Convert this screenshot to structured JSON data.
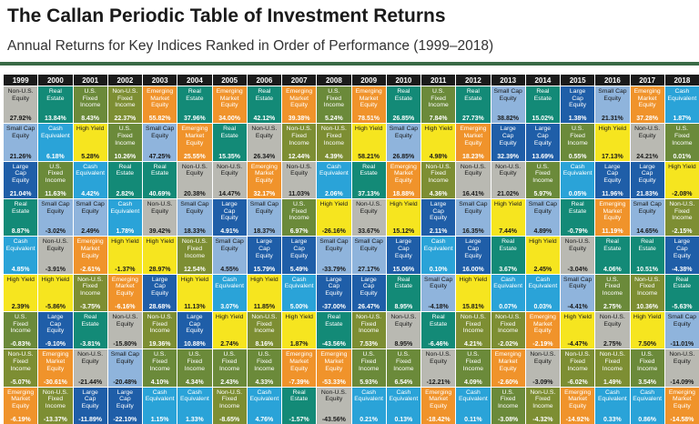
{
  "title": "The Callan Periodic Table of Investment Returns",
  "subtitle": "Annual Returns for Key Indices Ranked in Order of Performance (1999–2018)",
  "classes": {
    "lc": {
      "label": "Large\nCap\nEquity",
      "color": "#1f5ea8",
      "text": "#ffffff"
    },
    "sc": {
      "label": "Small Cap\nEquity",
      "color": "#8fb4dc",
      "text": "#1a1a1a"
    },
    "em": {
      "label": "Emerging\nMarket\nEquity",
      "color": "#f0932b",
      "text": "#ffffff"
    },
    "nus": {
      "label": "Non-U.S.\nEquity",
      "color": "#b9b9b2",
      "text": "#1a1a1a"
    },
    "hy": {
      "label": "High Yield",
      "color": "#f6e51f",
      "text": "#1a1a1a"
    },
    "re": {
      "label": "Real\nEstate",
      "color": "#138a77",
      "text": "#ffffff"
    },
    "usf": {
      "label": "U.S.\nFixed\nIncome",
      "color": "#6b8a3a",
      "text": "#ffffff"
    },
    "nuf": {
      "label": "Non-U.S.\nFixed\nIncome",
      "color": "#7d8e33",
      "text": "#ffffff"
    },
    "ce": {
      "label": "Cash\nEquivalent",
      "color": "#2aa3d8",
      "text": "#ffffff"
    }
  },
  "chart_data": {
    "type": "table",
    "title": "The Callan Periodic Table of Investment Returns",
    "subtitle": "Annual Returns for Key Indices Ranked in Order of Performance (1999–2018)",
    "years": [
      "1999",
      "2000",
      "2001",
      "2002",
      "2003",
      "2004",
      "2005",
      "2006",
      "2007",
      "2008",
      "2009",
      "2010",
      "2011",
      "2012",
      "2013",
      "2014",
      "2015",
      "2016",
      "2017",
      "2018"
    ],
    "columns": [
      [
        [
          "nus",
          "27.92%"
        ],
        [
          "re",
          "13.84%"
        ],
        [
          "usf",
          "8.43%"
        ],
        [
          "nuf",
          "22.37%"
        ],
        [
          "em",
          "55.82%"
        ],
        [
          "re",
          "37.96%"
        ],
        [
          "em",
          "34.00%"
        ],
        [
          "re",
          "42.12%"
        ],
        [
          "em",
          "39.38%"
        ],
        [
          "usf",
          "5.24%"
        ],
        [
          "em",
          "78.51%"
        ],
        [
          "re",
          "26.85%"
        ],
        [
          "usf",
          "7.84%"
        ],
        [
          "re",
          "27.73%"
        ],
        [
          "sc",
          "38.82%"
        ],
        [
          "re",
          "15.02%"
        ],
        [
          "lc",
          "1.38%"
        ],
        [
          "sc",
          "21.31%"
        ],
        [
          "em",
          "37.28%"
        ],
        [
          "ce",
          "1.87%"
        ]
      ],
      [
        [
          "sc",
          "21.26%"
        ],
        [
          "ce",
          "6.18%"
        ],
        [
          "hy",
          "5.28%"
        ],
        [
          "usf",
          "10.26%"
        ],
        [
          "sc",
          "47.25%"
        ],
        [
          "em",
          "25.55%"
        ],
        [
          "re",
          "15.35%"
        ],
        [
          "nus",
          "26.34%"
        ],
        [
          "nuf",
          "12.44%"
        ],
        [
          "nuf",
          "4.39%"
        ],
        [
          "hy",
          "58.21%"
        ],
        [
          "sc",
          "26.85%"
        ],
        [
          "hy",
          "4.98%"
        ],
        [
          "em",
          "18.23%"
        ],
        [
          "lc",
          "32.39%"
        ],
        [
          "lc",
          "13.69%"
        ],
        [
          "usf",
          "0.55%"
        ],
        [
          "hy",
          "17.13%"
        ],
        [
          "nus",
          "24.21%"
        ],
        [
          "usf",
          "0.01%"
        ]
      ],
      [
        [
          "lc",
          "21.04%"
        ],
        [
          "usf",
          "11.63%"
        ],
        [
          "ce",
          "4.42%"
        ],
        [
          "re",
          "2.82%"
        ],
        [
          "re",
          "40.69%"
        ],
        [
          "nus",
          "20.38%"
        ],
        [
          "nus",
          "14.47%"
        ],
        [
          "em",
          "32.17%"
        ],
        [
          "nus",
          "11.03%"
        ],
        [
          "ce",
          "2.06%"
        ],
        [
          "re",
          "37.13%"
        ],
        [
          "em",
          "18.88%"
        ],
        [
          "nuf",
          "4.36%"
        ],
        [
          "nus",
          "16.41%"
        ],
        [
          "nus",
          "21.02%"
        ],
        [
          "usf",
          "5.97%"
        ],
        [
          "ce",
          "0.05%"
        ],
        [
          "lc",
          "11.96%"
        ],
        [
          "lc",
          "21.83%"
        ],
        [
          "hy",
          "-2.08%"
        ]
      ],
      [
        [
          "re",
          "8.87%"
        ],
        [
          "sc",
          "-3.02%"
        ],
        [
          "sc",
          "2.49%"
        ],
        [
          "ce",
          "1.78%"
        ],
        [
          "nus",
          "39.42%"
        ],
        [
          "sc",
          "18.33%"
        ],
        [
          "lc",
          "4.91%"
        ],
        [
          "sc",
          "18.37%"
        ],
        [
          "usf",
          "6.97%"
        ],
        [
          "hy",
          "-26.16%"
        ],
        [
          "nus",
          "33.67%"
        ],
        [
          "hy",
          "15.12%"
        ],
        [
          "lc",
          "2.11%"
        ],
        [
          "sc",
          "16.35%"
        ],
        [
          "hy",
          "7.44%"
        ],
        [
          "sc",
          "4.89%"
        ],
        [
          "re",
          "-0.79%"
        ],
        [
          "em",
          "11.19%"
        ],
        [
          "sc",
          "14.65%"
        ],
        [
          "nuf",
          "-2.15%"
        ]
      ],
      [
        [
          "ce",
          "4.85%"
        ],
        [
          "nus",
          "-3.91%"
        ],
        [
          "em",
          "-2.61%"
        ],
        [
          "hy",
          "-1.37%"
        ],
        [
          "hy",
          "28.97%"
        ],
        [
          "nuf",
          "12.54%"
        ],
        [
          "sc",
          "4.55%"
        ],
        [
          "lc",
          "15.79%"
        ],
        [
          "lc",
          "5.49%"
        ],
        [
          "sc",
          "-33.79%"
        ],
        [
          "sc",
          "27.17%"
        ],
        [
          "lc",
          "15.06%"
        ],
        [
          "ce",
          "0.10%"
        ],
        [
          "lc",
          "16.00%"
        ],
        [
          "re",
          "3.67%"
        ],
        [
          "hy",
          "2.45%"
        ],
        [
          "nus",
          "-3.04%"
        ],
        [
          "re",
          "4.06%"
        ],
        [
          "re",
          "10.51%"
        ],
        [
          "lc",
          "-4.38%"
        ]
      ],
      [
        [
          "hy",
          "2.39%"
        ],
        [
          "hy",
          "-5.86%"
        ],
        [
          "nuf",
          "-3.75%"
        ],
        [
          "em",
          "-6.16%"
        ],
        [
          "lc",
          "28.68%"
        ],
        [
          "hy",
          "11.13%"
        ],
        [
          "ce",
          "3.07%"
        ],
        [
          "hy",
          "11.85%"
        ],
        [
          "ce",
          "5.00%"
        ],
        [
          "lc",
          "-37.00%"
        ],
        [
          "lc",
          "26.47%"
        ],
        [
          "re",
          "8.95%"
        ],
        [
          "sc",
          "-4.18%"
        ],
        [
          "hy",
          "15.81%"
        ],
        [
          "ce",
          "0.07%"
        ],
        [
          "ce",
          "0.03%"
        ],
        [
          "sc",
          "-4.41%"
        ],
        [
          "usf",
          "2.75%"
        ],
        [
          "nuf",
          "10.36%"
        ],
        [
          "re",
          "-5.63%"
        ]
      ],
      [
        [
          "usf",
          "-0.83%"
        ],
        [
          "lc",
          "-9.10%"
        ],
        [
          "re",
          "-3.81%"
        ],
        [
          "nus",
          "-15.80%"
        ],
        [
          "nuf",
          "19.36%"
        ],
        [
          "lc",
          "10.88%"
        ],
        [
          "hy",
          "2.74%"
        ],
        [
          "nuf",
          "8.16%"
        ],
        [
          "hy",
          "1.87%"
        ],
        [
          "re",
          "-43.56%"
        ],
        [
          "nuf",
          "7.53%"
        ],
        [
          "nus",
          "8.95%"
        ],
        [
          "re",
          "-6.46%"
        ],
        [
          "nuf",
          "4.21%"
        ],
        [
          "nuf",
          "-2.02%"
        ],
        [
          "em",
          "-2.19%"
        ],
        [
          "hy",
          "-4.47%"
        ],
        [
          "nus",
          "2.75%"
        ],
        [
          "hy",
          "7.50%"
        ],
        [
          "sc",
          "-11.01%"
        ]
      ],
      [
        [
          "nuf",
          "-5.07%"
        ],
        [
          "em",
          "-30.61%"
        ],
        [
          "nus",
          "-21.44%"
        ],
        [
          "sc",
          "-20.48%"
        ],
        [
          "usf",
          "4.10%"
        ],
        [
          "usf",
          "4.34%"
        ],
        [
          "usf",
          "2.43%"
        ],
        [
          "usf",
          "4.33%"
        ],
        [
          "em",
          "-7.39%"
        ],
        [
          "em",
          "-53.33%"
        ],
        [
          "usf",
          "5.93%"
        ],
        [
          "usf",
          "6.54%"
        ],
        [
          "nus",
          "-12.21%"
        ],
        [
          "usf",
          "4.09%"
        ],
        [
          "em",
          "-2.60%"
        ],
        [
          "nus",
          "-3.09%"
        ],
        [
          "nuf",
          "-6.02%"
        ],
        [
          "nuf",
          "1.49%"
        ],
        [
          "usf",
          "3.54%"
        ],
        [
          "nus",
          "-14.09%"
        ]
      ],
      [
        [
          "em",
          "-6.19%"
        ],
        [
          "nuf",
          "-13.37%"
        ],
        [
          "lc",
          "-11.89%"
        ],
        [
          "lc",
          "-22.10%"
        ],
        [
          "ce",
          "1.15%"
        ],
        [
          "ce",
          "1.33%"
        ],
        [
          "nuf",
          "-8.65%"
        ],
        [
          "ce",
          "4.76%"
        ],
        [
          "re",
          "-1.57%"
        ],
        [
          "nus",
          "-43.56%"
        ],
        [
          "ce",
          "0.21%"
        ],
        [
          "ce",
          "0.13%"
        ],
        [
          "em",
          "-18.42%"
        ],
        [
          "ce",
          "0.11%"
        ],
        [
          "usf",
          "-3.08%"
        ],
        [
          "nuf",
          "-4.32%"
        ],
        [
          "em",
          "-14.92%"
        ],
        [
          "ce",
          "0.33%"
        ],
        [
          "ce",
          "0.86%"
        ],
        [
          "em",
          "-14.58%"
        ]
      ]
    ]
  }
}
